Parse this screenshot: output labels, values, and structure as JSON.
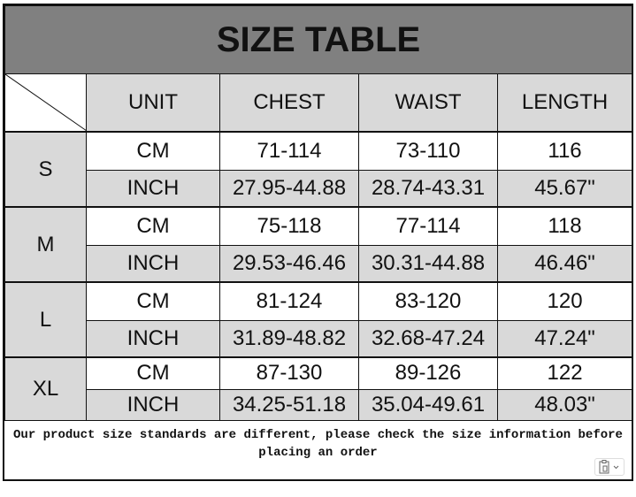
{
  "title": "SIZE TABLE",
  "headers": [
    "UNIT",
    "CHEST",
    "WAIST",
    "LENGTH"
  ],
  "sizes": [
    {
      "size": "S",
      "rows": [
        [
          "CM",
          "71-114",
          "73-110",
          "116"
        ],
        [
          "INCH",
          "27.95-44.88",
          "28.74-43.31",
          "45.67\""
        ]
      ]
    },
    {
      "size": "M",
      "rows": [
        [
          "CM",
          "75-118",
          "77-114",
          "118"
        ],
        [
          "INCH",
          "29.53-46.46",
          "30.31-44.88",
          "46.46\""
        ]
      ]
    },
    {
      "size": "L",
      "rows": [
        [
          "CM",
          "81-124",
          "83-120",
          "120"
        ],
        [
          "INCH",
          "31.89-48.82",
          "32.68-47.24",
          "47.24\""
        ]
      ]
    },
    {
      "size": "XL",
      "rows": [
        [
          "CM",
          "87-130",
          "89-126",
          "122"
        ],
        [
          "INCH",
          "34.25-51.18",
          "35.04-49.61",
          "48.03\""
        ]
      ]
    }
  ],
  "note": "Our product size standards are different, please check the size information before placing an order",
  "paste_icon": "clipboard-paste-icon"
}
